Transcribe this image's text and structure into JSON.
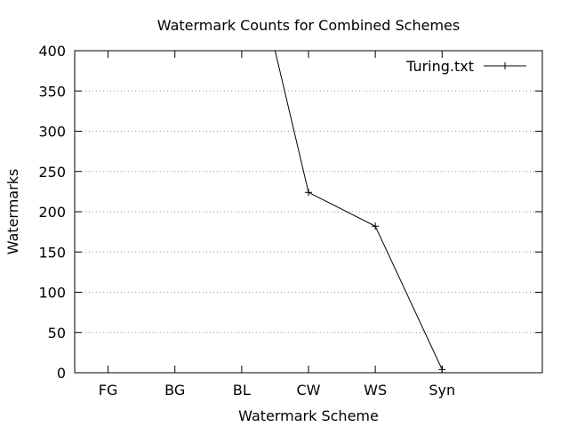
{
  "chart_data": {
    "type": "line",
    "title": "Watermark Counts for Combined Schemes",
    "xlabel": "Watermark Scheme",
    "ylabel": "Watermarks",
    "categories": [
      "FG",
      "BG",
      "BL",
      "CW",
      "WS",
      "Syn"
    ],
    "y_ticks": [
      "0",
      "50",
      "100",
      "150",
      "200",
      "250",
      "300",
      "350",
      "400"
    ],
    "ylim": [
      0,
      400
    ],
    "xlim": [
      -0.5,
      6.5
    ],
    "grid": "horizontal dotted",
    "legend_position": "top-right",
    "series": [
      {
        "name": "Turing.txt",
        "color": "#000000",
        "marker": "plus",
        "points": [
          {
            "x": 2.5,
            "y": 400
          },
          {
            "x": 3,
            "y": 224
          },
          {
            "x": 4,
            "y": 182
          },
          {
            "x": 5,
            "y": 4
          }
        ],
        "marked_points": [
          {
            "x": 3,
            "y": 224
          },
          {
            "x": 4,
            "y": 182
          },
          {
            "x": 5,
            "y": 4
          }
        ]
      }
    ]
  }
}
